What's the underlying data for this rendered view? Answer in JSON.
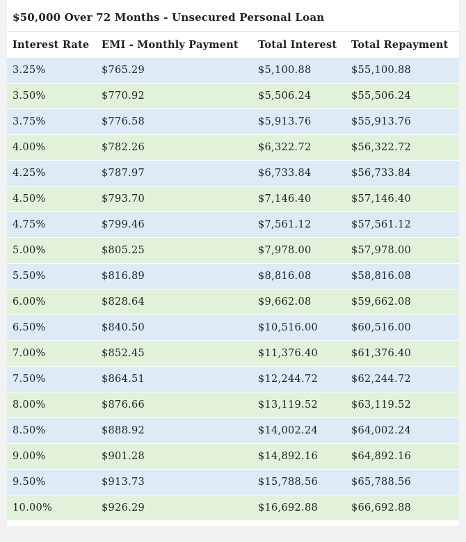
{
  "title": "$50,000 Over 72 Months - Unsecured Personal Loan",
  "columns": [
    "Interest Rate",
    "EMI - Monthly Payment",
    "Total Interest",
    "Total Repayment"
  ],
  "colors": {
    "row_blue": "#dcebf6",
    "row_green": "#e2f2da",
    "page_background": "#f2f2f2"
  },
  "rows": [
    [
      "3.25%",
      "$765.29",
      "$5,100.88",
      "$55,100.88"
    ],
    [
      "3.50%",
      "$770.92",
      "$5,506.24",
      "$55,506.24"
    ],
    [
      "3.75%",
      "$776.58",
      "$5,913.76",
      "$55,913.76"
    ],
    [
      "4.00%",
      "$782.26",
      "$6,322.72",
      "$56,322.72"
    ],
    [
      "4.25%",
      "$787.97",
      "$6,733.84",
      "$56,733.84"
    ],
    [
      "4.50%",
      "$793.70",
      "$7,146.40",
      "$57,146.40"
    ],
    [
      "4.75%",
      "$799.46",
      "$7,561.12",
      "$57,561.12"
    ],
    [
      "5.00%",
      "$805.25",
      "$7,978.00",
      "$57,978.00"
    ],
    [
      "5.50%",
      "$816.89",
      "$8,816.08",
      "$58,816.08"
    ],
    [
      "6.00%",
      "$828.64",
      "$9,662.08",
      "$59,662.08"
    ],
    [
      "6.50%",
      "$840.50",
      "$10,516.00",
      "$60,516.00"
    ],
    [
      "7.00%",
      "$852.45",
      "$11,376.40",
      "$61,376.40"
    ],
    [
      "7.50%",
      "$864.51",
      "$12,244.72",
      "$62,244.72"
    ],
    [
      "8.00%",
      "$876.66",
      "$13,119.52",
      "$63,119.52"
    ],
    [
      "8.50%",
      "$888.92",
      "$14,002.24",
      "$64,002.24"
    ],
    [
      "9.00%",
      "$901.28",
      "$14,892.16",
      "$64,892.16"
    ],
    [
      "9.50%",
      "$913.73",
      "$15,788.56",
      "$65,788.56"
    ],
    [
      "10.00%",
      "$926.29",
      "$16,692.88",
      "$66,692.88"
    ]
  ]
}
